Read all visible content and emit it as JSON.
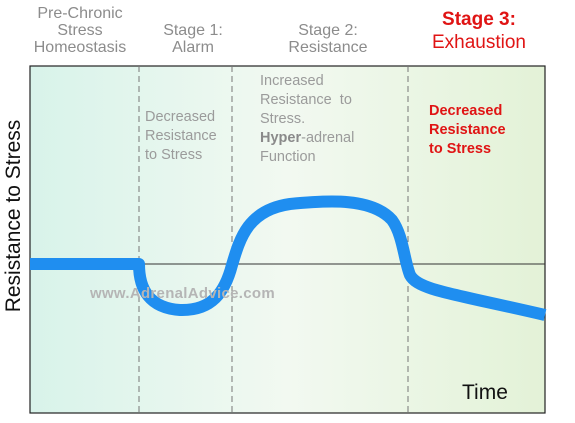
{
  "headers": {
    "pre_chronic": [
      "Pre-Chronic",
      "Stress",
      "Homeostasis"
    ],
    "stage1": [
      "Stage 1:",
      "Alarm"
    ],
    "stage2": [
      "Stage 2:",
      "Resistance"
    ],
    "stage3": [
      "Stage 3:",
      "Exhaustion"
    ]
  },
  "notes": {
    "stage1": [
      "Decreased",
      "Resistance",
      "to Stress"
    ],
    "stage2": {
      "line1": "Increased",
      "line2": "Resistance  to",
      "line3": "Stress.",
      "line4_bold": "Hyper",
      "line4_rest": "-adrenal",
      "line5": "Function"
    },
    "stage3": [
      "Decreased",
      "Resistance",
      "to Stress"
    ]
  },
  "y_axis_label": "Resistance to Stress",
  "x_axis_label": "Time",
  "watermark": "www.AdrenalAdvice.com",
  "colors": {
    "curve": "#1f8ef0",
    "stage3_text": "#e01414",
    "bg_left": "#d8f3ea",
    "bg_right": "#e3f2d7"
  }
}
